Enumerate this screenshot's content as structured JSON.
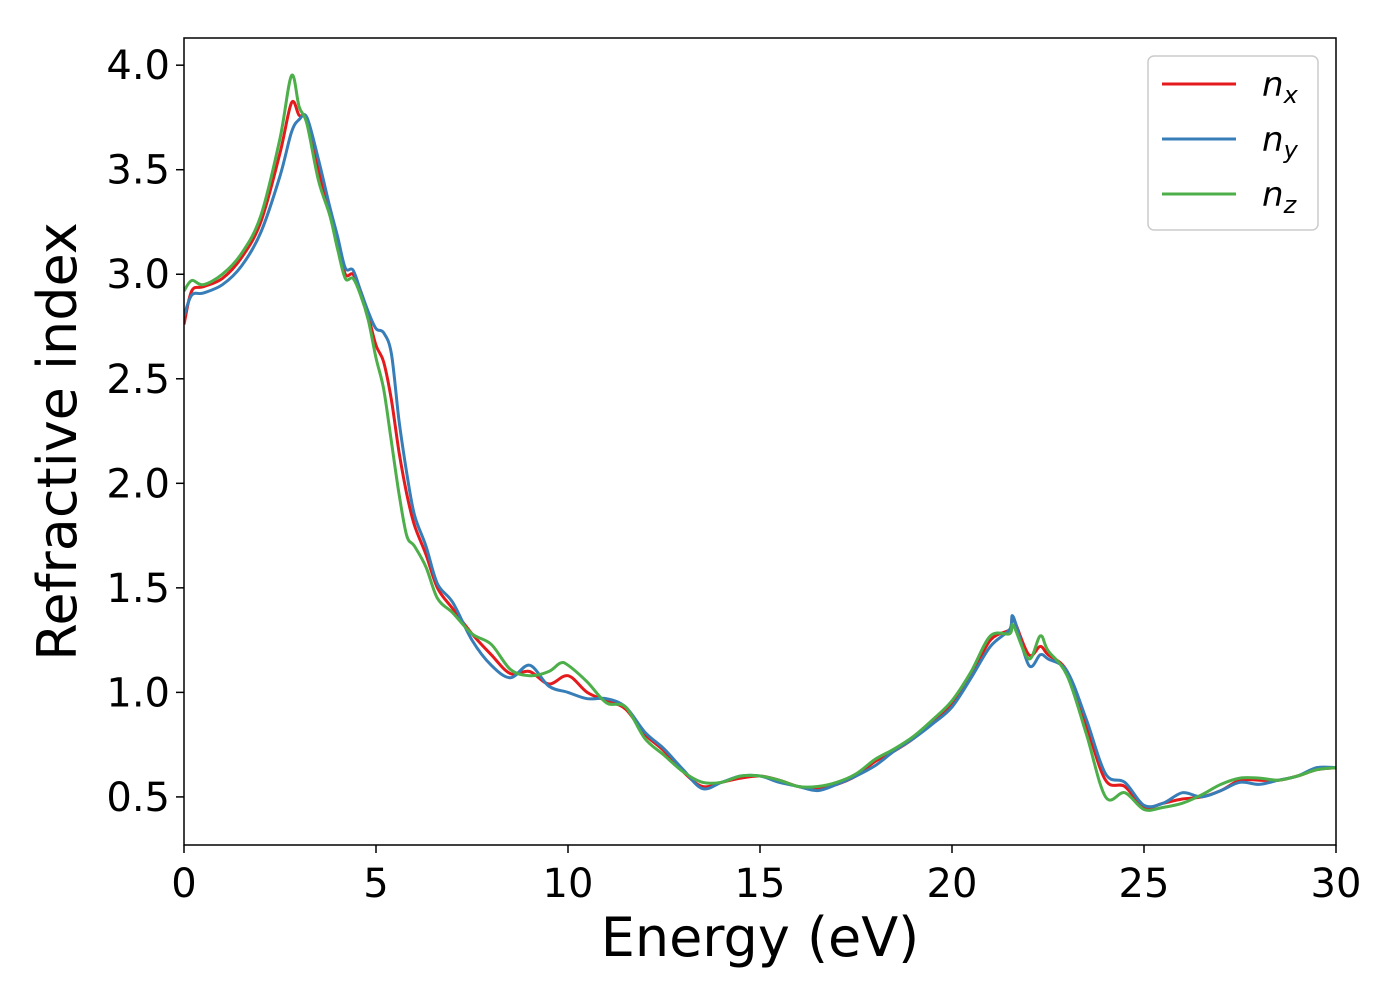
{
  "chart_data": {
    "type": "line",
    "title": "",
    "xlabel": "Energy (eV)",
    "ylabel": "Refractive index",
    "xlim": [
      0,
      30
    ],
    "ylim": [
      0.27,
      4.13
    ],
    "xticks": [
      0,
      5,
      10,
      15,
      20,
      25,
      30
    ],
    "xtick_labels": [
      "0",
      "5",
      "10",
      "15",
      "20",
      "25",
      "30"
    ],
    "yticks": [
      0.5,
      1.0,
      1.5,
      2.0,
      2.5,
      3.0,
      3.5,
      4.0
    ],
    "ytick_labels": [
      "0.5",
      "1.0",
      "1.5",
      "2.0",
      "2.5",
      "3.0",
      "3.5",
      "4.0"
    ],
    "grid": false,
    "legend_position": "top-right",
    "series": [
      {
        "name": "n",
        "sub": "x",
        "color": "#e41a1c",
        "points": [
          [
            0,
            2.76
          ],
          [
            0.2,
            2.92
          ],
          [
            0.5,
            2.94
          ],
          [
            1,
            2.98
          ],
          [
            1.5,
            3.08
          ],
          [
            2,
            3.25
          ],
          [
            2.5,
            3.58
          ],
          [
            2.8,
            3.82
          ],
          [
            3.0,
            3.76
          ],
          [
            3.2,
            3.74
          ],
          [
            3.5,
            3.5
          ],
          [
            3.8,
            3.3
          ],
          [
            4.0,
            3.15
          ],
          [
            4.2,
            3.0
          ],
          [
            4.4,
            3.0
          ],
          [
            4.6,
            2.92
          ],
          [
            4.8,
            2.8
          ],
          [
            5.0,
            2.66
          ],
          [
            5.2,
            2.58
          ],
          [
            5.4,
            2.4
          ],
          [
            5.6,
            2.15
          ],
          [
            5.8,
            1.95
          ],
          [
            6.0,
            1.8
          ],
          [
            6.3,
            1.66
          ],
          [
            6.6,
            1.5
          ],
          [
            7.0,
            1.4
          ],
          [
            7.5,
            1.28
          ],
          [
            8,
            1.18
          ],
          [
            8.5,
            1.09
          ],
          [
            9,
            1.1
          ],
          [
            9.5,
            1.04
          ],
          [
            10,
            1.08
          ],
          [
            10.5,
            1.0
          ],
          [
            11,
            0.96
          ],
          [
            11.5,
            0.92
          ],
          [
            12,
            0.8
          ],
          [
            12.5,
            0.72
          ],
          [
            13,
            0.62
          ],
          [
            13.5,
            0.55
          ],
          [
            14,
            0.57
          ],
          [
            14.5,
            0.59
          ],
          [
            15,
            0.6
          ],
          [
            15.5,
            0.58
          ],
          [
            16,
            0.55
          ],
          [
            16.5,
            0.54
          ],
          [
            17,
            0.56
          ],
          [
            17.5,
            0.6
          ],
          [
            18,
            0.67
          ],
          [
            18.5,
            0.72
          ],
          [
            19,
            0.78
          ],
          [
            19.5,
            0.86
          ],
          [
            20,
            0.95
          ],
          [
            20.5,
            1.08
          ],
          [
            21,
            1.25
          ],
          [
            21.5,
            1.3
          ],
          [
            21.6,
            1.35
          ],
          [
            22,
            1.18
          ],
          [
            22.3,
            1.22
          ],
          [
            22.5,
            1.18
          ],
          [
            23,
            1.1
          ],
          [
            23.5,
            0.84
          ],
          [
            24,
            0.58
          ],
          [
            24.5,
            0.55
          ],
          [
            25,
            0.45
          ],
          [
            25.5,
            0.47
          ],
          [
            26,
            0.49
          ],
          [
            26.5,
            0.5
          ],
          [
            27,
            0.53
          ],
          [
            27.5,
            0.58
          ],
          [
            28,
            0.58
          ],
          [
            28.5,
            0.58
          ],
          [
            29,
            0.6
          ],
          [
            29.5,
            0.63
          ],
          [
            30,
            0.64
          ]
        ]
      },
      {
        "name": "n",
        "sub": "y",
        "color": "#377eb8",
        "points": [
          [
            0,
            2.8
          ],
          [
            0.2,
            2.9
          ],
          [
            0.5,
            2.91
          ],
          [
            1,
            2.95
          ],
          [
            1.5,
            3.04
          ],
          [
            2,
            3.2
          ],
          [
            2.5,
            3.47
          ],
          [
            2.8,
            3.68
          ],
          [
            3.0,
            3.74
          ],
          [
            3.2,
            3.75
          ],
          [
            3.5,
            3.55
          ],
          [
            3.8,
            3.32
          ],
          [
            4.0,
            3.18
          ],
          [
            4.2,
            3.03
          ],
          [
            4.4,
            3.02
          ],
          [
            4.6,
            2.92
          ],
          [
            4.8,
            2.82
          ],
          [
            5.0,
            2.74
          ],
          [
            5.2,
            2.72
          ],
          [
            5.4,
            2.62
          ],
          [
            5.6,
            2.3
          ],
          [
            5.8,
            2.05
          ],
          [
            6.0,
            1.85
          ],
          [
            6.3,
            1.7
          ],
          [
            6.6,
            1.52
          ],
          [
            7.0,
            1.43
          ],
          [
            7.5,
            1.25
          ],
          [
            8,
            1.13
          ],
          [
            8.5,
            1.07
          ],
          [
            9,
            1.13
          ],
          [
            9.5,
            1.03
          ],
          [
            10,
            1.0
          ],
          [
            10.5,
            0.97
          ],
          [
            11,
            0.97
          ],
          [
            11.5,
            0.93
          ],
          [
            12,
            0.81
          ],
          [
            12.5,
            0.73
          ],
          [
            13,
            0.63
          ],
          [
            13.5,
            0.54
          ],
          [
            14,
            0.57
          ],
          [
            14.5,
            0.6
          ],
          [
            15,
            0.6
          ],
          [
            15.5,
            0.57
          ],
          [
            16,
            0.55
          ],
          [
            16.5,
            0.53
          ],
          [
            17,
            0.56
          ],
          [
            17.5,
            0.6
          ],
          [
            18,
            0.65
          ],
          [
            18.5,
            0.72
          ],
          [
            19,
            0.78
          ],
          [
            19.5,
            0.85
          ],
          [
            20,
            0.93
          ],
          [
            20.5,
            1.07
          ],
          [
            21,
            1.22
          ],
          [
            21.5,
            1.3
          ],
          [
            21.6,
            1.36
          ],
          [
            22,
            1.13
          ],
          [
            22.3,
            1.18
          ],
          [
            22.5,
            1.16
          ],
          [
            23,
            1.1
          ],
          [
            23.5,
            0.87
          ],
          [
            24,
            0.61
          ],
          [
            24.5,
            0.57
          ],
          [
            25,
            0.46
          ],
          [
            25.5,
            0.47
          ],
          [
            26,
            0.52
          ],
          [
            26.5,
            0.5
          ],
          [
            27,
            0.53
          ],
          [
            27.5,
            0.57
          ],
          [
            28,
            0.56
          ],
          [
            28.5,
            0.58
          ],
          [
            29,
            0.6
          ],
          [
            29.5,
            0.64
          ],
          [
            30,
            0.64
          ]
        ]
      },
      {
        "name": "n",
        "sub": "z",
        "color": "#4daf4a",
        "points": [
          [
            0,
            2.92
          ],
          [
            0.2,
            2.97
          ],
          [
            0.5,
            2.95
          ],
          [
            1,
            3.0
          ],
          [
            1.5,
            3.1
          ],
          [
            2,
            3.28
          ],
          [
            2.5,
            3.65
          ],
          [
            2.8,
            3.95
          ],
          [
            3.0,
            3.8
          ],
          [
            3.2,
            3.72
          ],
          [
            3.5,
            3.45
          ],
          [
            3.8,
            3.28
          ],
          [
            4.0,
            3.12
          ],
          [
            4.2,
            2.98
          ],
          [
            4.4,
            2.98
          ],
          [
            4.6,
            2.9
          ],
          [
            4.8,
            2.78
          ],
          [
            5.0,
            2.6
          ],
          [
            5.2,
            2.45
          ],
          [
            5.4,
            2.2
          ],
          [
            5.6,
            1.95
          ],
          [
            5.8,
            1.75
          ],
          [
            6.0,
            1.7
          ],
          [
            6.3,
            1.6
          ],
          [
            6.6,
            1.45
          ],
          [
            7.0,
            1.38
          ],
          [
            7.5,
            1.28
          ],
          [
            8,
            1.23
          ],
          [
            8.5,
            1.11
          ],
          [
            9,
            1.08
          ],
          [
            9.5,
            1.1
          ],
          [
            9.8,
            1.14
          ],
          [
            10,
            1.13
          ],
          [
            10.5,
            1.05
          ],
          [
            11,
            0.95
          ],
          [
            11.5,
            0.93
          ],
          [
            12,
            0.78
          ],
          [
            12.5,
            0.7
          ],
          [
            13,
            0.62
          ],
          [
            13.5,
            0.57
          ],
          [
            14,
            0.57
          ],
          [
            14.5,
            0.6
          ],
          [
            15,
            0.6
          ],
          [
            15.5,
            0.58
          ],
          [
            16,
            0.55
          ],
          [
            16.5,
            0.55
          ],
          [
            17,
            0.57
          ],
          [
            17.5,
            0.61
          ],
          [
            18,
            0.68
          ],
          [
            18.5,
            0.73
          ],
          [
            19,
            0.79
          ],
          [
            19.5,
            0.87
          ],
          [
            20,
            0.96
          ],
          [
            20.5,
            1.1
          ],
          [
            21,
            1.27
          ],
          [
            21.5,
            1.28
          ],
          [
            21.6,
            1.32
          ],
          [
            22,
            1.16
          ],
          [
            22.3,
            1.27
          ],
          [
            22.5,
            1.2
          ],
          [
            23,
            1.08
          ],
          [
            23.5,
            0.8
          ],
          [
            24,
            0.5
          ],
          [
            24.5,
            0.52
          ],
          [
            25,
            0.44
          ],
          [
            25.5,
            0.45
          ],
          [
            26,
            0.47
          ],
          [
            26.5,
            0.51
          ],
          [
            27,
            0.56
          ],
          [
            27.5,
            0.59
          ],
          [
            28,
            0.59
          ],
          [
            28.5,
            0.58
          ],
          [
            29,
            0.6
          ],
          [
            29.5,
            0.63
          ],
          [
            30,
            0.64
          ]
        ]
      }
    ]
  }
}
